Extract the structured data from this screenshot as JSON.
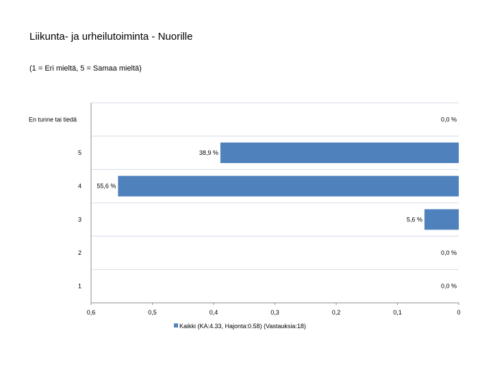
{
  "title": "Liikunta- ja urheilutoiminta - Nuorille",
  "subtitle": "(1 = Eri mieltä, 5 = Samaa mieltä)",
  "chart_data": {
    "type": "bar",
    "orientation": "horizontal",
    "x_reversed": true,
    "categories": [
      "En tunne tai tiedä",
      "5",
      "4",
      "3",
      "2",
      "1"
    ],
    "series": [
      {
        "name": "Kaikki (KA:4.33, Hajonta:0.58) (Vastauksia:18)",
        "values": [
          0.0,
          0.389,
          0.556,
          0.056,
          0.0,
          0.0
        ],
        "labels": [
          "0,0 %",
          "38,9 %",
          "55,6 %",
          "5,6 %",
          "0,0 %",
          "0,0 %"
        ]
      }
    ],
    "xlim": [
      0,
      0.6
    ],
    "x_ticks": [
      0.6,
      0.5,
      0.4,
      0.3,
      0.2,
      0.1,
      0
    ],
    "x_tick_labels": [
      "0,6",
      "0,5",
      "0,4",
      "0,3",
      "0,2",
      "0,1",
      "0"
    ],
    "grid": true,
    "legend_position": "bottom",
    "colors": {
      "bar": "#4f81bd",
      "grid": "#d3dde8",
      "axis": "#8c8c8c"
    }
  }
}
